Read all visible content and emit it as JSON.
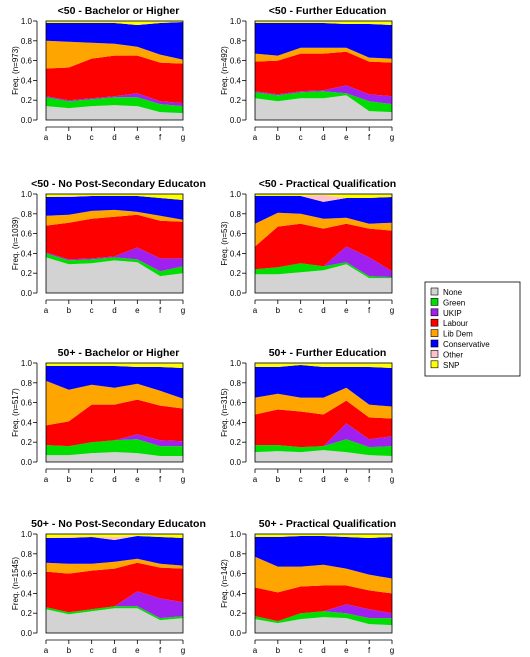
{
  "colors": {
    "None": "#d3d3d3",
    "Green": "#00dd00",
    "UKIP": "#a020f0",
    "Labour": "#ff0000",
    "Lib Dem": "#ffa500",
    "Conservative": "#0000ff",
    "Other": "#ffc0cb",
    "SNP": "#ffff00"
  },
  "legend": [
    "None",
    "Green",
    "UKIP",
    "Labour",
    "Lib Dem",
    "Conservative",
    "Other",
    "SNP"
  ],
  "chart_data": [
    {
      "type": "area",
      "stacked": true,
      "title": "<50 -  Bachelor or Higher",
      "ylabel": "Freq. (n=973)",
      "categories": [
        "a",
        "b",
        "c",
        "d",
        "e",
        "f",
        "g"
      ],
      "yticks": [
        "0.0",
        "0.2",
        "0.4",
        "0.6",
        "0.8",
        "1.0"
      ],
      "ylim": [
        0,
        1
      ],
      "series": [
        {
          "name": "None",
          "values": [
            0.14,
            0.12,
            0.14,
            0.15,
            0.14,
            0.08,
            0.07
          ]
        },
        {
          "name": "Green",
          "values": [
            0.09,
            0.07,
            0.07,
            0.08,
            0.09,
            0.08,
            0.07
          ]
        },
        {
          "name": "UKIP",
          "values": [
            0.01,
            0.01,
            0.01,
            0.01,
            0.04,
            0.03,
            0.03
          ]
        },
        {
          "name": "Labour",
          "values": [
            0.28,
            0.33,
            0.4,
            0.41,
            0.38,
            0.39,
            0.4
          ]
        },
        {
          "name": "Lib Dem",
          "values": [
            0.28,
            0.26,
            0.16,
            0.12,
            0.09,
            0.08,
            0.04
          ]
        },
        {
          "name": "Conservative",
          "values": [
            0.18,
            0.19,
            0.2,
            0.21,
            0.22,
            0.32,
            0.38
          ]
        },
        {
          "name": "Other",
          "values": [
            0.0,
            0.0,
            0.0,
            0.0,
            0.0,
            0.0,
            0.0
          ]
        },
        {
          "name": "SNP",
          "values": [
            0.02,
            0.02,
            0.02,
            0.02,
            0.04,
            0.02,
            0.01
          ]
        }
      ]
    },
    {
      "type": "area",
      "stacked": true,
      "title": "<50 -  Further Education",
      "ylabel": "Freq. (n=492)",
      "categories": [
        "a",
        "b",
        "c",
        "d",
        "e",
        "f",
        "g"
      ],
      "yticks": [
        "0.0",
        "0.2",
        "0.4",
        "0.6",
        "0.8",
        "1.0"
      ],
      "ylim": [
        0,
        1
      ],
      "series": [
        {
          "name": "None",
          "values": [
            0.22,
            0.19,
            0.22,
            0.22,
            0.25,
            0.09,
            0.08
          ]
        },
        {
          "name": "Green",
          "values": [
            0.06,
            0.06,
            0.06,
            0.07,
            0.02,
            0.1,
            0.08
          ]
        },
        {
          "name": "UKIP",
          "values": [
            0.01,
            0.01,
            0.01,
            0.01,
            0.08,
            0.07,
            0.08
          ]
        },
        {
          "name": "Labour",
          "values": [
            0.3,
            0.34,
            0.38,
            0.37,
            0.34,
            0.33,
            0.34
          ]
        },
        {
          "name": "Lib Dem",
          "values": [
            0.08,
            0.05,
            0.06,
            0.06,
            0.04,
            0.04,
            0.04
          ]
        },
        {
          "name": "Conservative",
          "values": [
            0.31,
            0.33,
            0.25,
            0.25,
            0.24,
            0.34,
            0.34
          ]
        },
        {
          "name": "Other",
          "values": [
            0.0,
            0.0,
            0.0,
            0.0,
            0.0,
            0.0,
            0.0
          ]
        },
        {
          "name": "SNP",
          "values": [
            0.02,
            0.02,
            0.02,
            0.02,
            0.03,
            0.03,
            0.04
          ]
        }
      ]
    },
    {
      "type": "area",
      "stacked": true,
      "title": "<50 -  No Post-Secondary Educaton",
      "ylabel": "Freq. (n=1039)",
      "categories": [
        "a",
        "b",
        "c",
        "d",
        "e",
        "f",
        "g"
      ],
      "yticks": [
        "0.0",
        "0.2",
        "0.4",
        "0.6",
        "0.8",
        "1.0"
      ],
      "ylim": [
        0,
        1
      ],
      "series": [
        {
          "name": "None",
          "values": [
            0.36,
            0.29,
            0.3,
            0.33,
            0.31,
            0.17,
            0.2
          ]
        },
        {
          "name": "Green",
          "values": [
            0.04,
            0.04,
            0.04,
            0.03,
            0.03,
            0.05,
            0.07
          ]
        },
        {
          "name": "UKIP",
          "values": [
            0.01,
            0.01,
            0.01,
            0.01,
            0.12,
            0.13,
            0.08
          ]
        },
        {
          "name": "Labour",
          "values": [
            0.27,
            0.37,
            0.4,
            0.4,
            0.33,
            0.38,
            0.37
          ]
        },
        {
          "name": "Lib Dem",
          "values": [
            0.1,
            0.08,
            0.08,
            0.07,
            0.03,
            0.05,
            0.02
          ]
        },
        {
          "name": "Conservative",
          "values": [
            0.19,
            0.18,
            0.15,
            0.14,
            0.16,
            0.18,
            0.2
          ]
        },
        {
          "name": "Other",
          "values": [
            0.0,
            0.01,
            0.0,
            0.0,
            0.0,
            0.0,
            0.0
          ]
        },
        {
          "name": "SNP",
          "values": [
            0.03,
            0.02,
            0.02,
            0.02,
            0.02,
            0.04,
            0.06
          ]
        }
      ]
    },
    {
      "type": "area",
      "stacked": true,
      "title": "<50 -  Practical Qualification",
      "ylabel": "Freq. (n=53)",
      "categories": [
        "a",
        "b",
        "c",
        "d",
        "e",
        "f",
        "g"
      ],
      "yticks": [
        "0.0",
        "0.2",
        "0.4",
        "0.6",
        "0.8",
        "1.0"
      ],
      "ylim": [
        0,
        1
      ],
      "series": [
        {
          "name": "None",
          "values": [
            0.19,
            0.19,
            0.21,
            0.23,
            0.29,
            0.15,
            0.15
          ]
        },
        {
          "name": "Green",
          "values": [
            0.05,
            0.07,
            0.09,
            0.04,
            0.02,
            0.02,
            0.01
          ]
        },
        {
          "name": "UKIP",
          "values": [
            0.0,
            0.0,
            0.0,
            0.0,
            0.16,
            0.19,
            0.06
          ]
        },
        {
          "name": "Labour",
          "values": [
            0.23,
            0.41,
            0.4,
            0.38,
            0.23,
            0.29,
            0.41
          ]
        },
        {
          "name": "Lib Dem",
          "values": [
            0.23,
            0.14,
            0.1,
            0.1,
            0.06,
            0.05,
            0.08
          ]
        },
        {
          "name": "Conservative",
          "values": [
            0.28,
            0.17,
            0.18,
            0.17,
            0.2,
            0.26,
            0.26
          ]
        },
        {
          "name": "Other",
          "values": [
            0.0,
            0.0,
            0.0,
            0.07,
            0.0,
            0.0,
            0.0
          ]
        },
        {
          "name": "SNP",
          "values": [
            0.02,
            0.02,
            0.02,
            0.01,
            0.04,
            0.04,
            0.03
          ]
        }
      ]
    },
    {
      "type": "area",
      "stacked": true,
      "title": "50+ -  Bachelor or Higher",
      "ylabel": "Freq. (n=517)",
      "categories": [
        "a",
        "b",
        "c",
        "d",
        "e",
        "f",
        "g"
      ],
      "yticks": [
        "0.0",
        "0.2",
        "0.4",
        "0.6",
        "0.8",
        "1.0"
      ],
      "ylim": [
        0,
        1
      ],
      "series": [
        {
          "name": "None",
          "values": [
            0.07,
            0.07,
            0.09,
            0.1,
            0.09,
            0.06,
            0.06
          ]
        },
        {
          "name": "Green",
          "values": [
            0.1,
            0.09,
            0.11,
            0.12,
            0.14,
            0.1,
            0.1
          ]
        },
        {
          "name": "UKIP",
          "values": [
            0.0,
            0.0,
            0.0,
            0.0,
            0.05,
            0.06,
            0.05
          ]
        },
        {
          "name": "Labour",
          "values": [
            0.2,
            0.25,
            0.38,
            0.36,
            0.35,
            0.35,
            0.33
          ]
        },
        {
          "name": "Lib Dem",
          "values": [
            0.45,
            0.32,
            0.2,
            0.17,
            0.16,
            0.15,
            0.1
          ]
        },
        {
          "name": "Conservative",
          "values": [
            0.15,
            0.24,
            0.19,
            0.22,
            0.17,
            0.24,
            0.31
          ]
        },
        {
          "name": "Other",
          "values": [
            0.0,
            0.0,
            0.0,
            0.0,
            0.0,
            0.0,
            0.0
          ]
        },
        {
          "name": "SNP",
          "values": [
            0.03,
            0.03,
            0.03,
            0.03,
            0.04,
            0.04,
            0.05
          ]
        }
      ]
    },
    {
      "type": "area",
      "stacked": true,
      "title": "50+ -  Further Education",
      "ylabel": "Freq. (n=315)",
      "categories": [
        "a",
        "b",
        "c",
        "d",
        "e",
        "f",
        "g"
      ],
      "yticks": [
        "0.0",
        "0.2",
        "0.4",
        "0.6",
        "0.8",
        "1.0"
      ],
      "ylim": [
        0,
        1
      ],
      "series": [
        {
          "name": "None",
          "values": [
            0.1,
            0.11,
            0.1,
            0.12,
            0.1,
            0.07,
            0.06
          ]
        },
        {
          "name": "Green",
          "values": [
            0.07,
            0.06,
            0.05,
            0.04,
            0.13,
            0.08,
            0.1
          ]
        },
        {
          "name": "UKIP",
          "values": [
            0.0,
            0.0,
            0.0,
            0.0,
            0.16,
            0.08,
            0.1
          ]
        },
        {
          "name": "Labour",
          "values": [
            0.31,
            0.36,
            0.36,
            0.32,
            0.23,
            0.22,
            0.18
          ]
        },
        {
          "name": "Lib Dem",
          "values": [
            0.17,
            0.16,
            0.14,
            0.17,
            0.13,
            0.13,
            0.12
          ]
        },
        {
          "name": "Conservative",
          "values": [
            0.31,
            0.27,
            0.33,
            0.31,
            0.21,
            0.38,
            0.39
          ]
        },
        {
          "name": "Other",
          "values": [
            0.0,
            0.0,
            0.0,
            0.0,
            0.0,
            0.0,
            0.0
          ]
        },
        {
          "name": "SNP",
          "values": [
            0.04,
            0.04,
            0.02,
            0.04,
            0.04,
            0.04,
            0.05
          ]
        }
      ]
    },
    {
      "type": "area",
      "stacked": true,
      "title": "50+ -  No Post-Secondary Educaton",
      "ylabel": "Freq. (n=1545)",
      "categories": [
        "a",
        "b",
        "c",
        "d",
        "e",
        "f",
        "g"
      ],
      "yticks": [
        "0.0",
        "0.2",
        "0.4",
        "0.6",
        "0.8",
        "1.0"
      ],
      "ylim": [
        0,
        1
      ],
      "series": [
        {
          "name": "None",
          "values": [
            0.24,
            0.19,
            0.22,
            0.25,
            0.25,
            0.13,
            0.15
          ]
        },
        {
          "name": "Green",
          "values": [
            0.02,
            0.02,
            0.02,
            0.02,
            0.02,
            0.02,
            0.02
          ]
        },
        {
          "name": "UKIP",
          "values": [
            0.0,
            0.0,
            0.0,
            0.0,
            0.15,
            0.2,
            0.14
          ]
        },
        {
          "name": "Labour",
          "values": [
            0.36,
            0.39,
            0.39,
            0.38,
            0.29,
            0.31,
            0.34
          ]
        },
        {
          "name": "Lib Dem",
          "values": [
            0.09,
            0.1,
            0.07,
            0.07,
            0.04,
            0.04,
            0.03
          ]
        },
        {
          "name": "Conservative",
          "values": [
            0.25,
            0.26,
            0.27,
            0.22,
            0.23,
            0.27,
            0.28
          ]
        },
        {
          "name": "Other",
          "values": [
            0.0,
            0.01,
            0.0,
            0.03,
            0.0,
            0.0,
            0.0
          ]
        },
        {
          "name": "SNP",
          "values": [
            0.04,
            0.03,
            0.03,
            0.03,
            0.02,
            0.03,
            0.04
          ]
        }
      ]
    },
    {
      "type": "area",
      "stacked": true,
      "title": "50+ -  Practical Qualification",
      "ylabel": "Freq. (n=142)",
      "categories": [
        "a",
        "b",
        "c",
        "d",
        "e",
        "f",
        "g"
      ],
      "yticks": [
        "0.0",
        "0.2",
        "0.4",
        "0.6",
        "0.8",
        "1.0"
      ],
      "ylim": [
        0,
        1
      ],
      "series": [
        {
          "name": "None",
          "values": [
            0.14,
            0.1,
            0.14,
            0.16,
            0.15,
            0.09,
            0.08
          ]
        },
        {
          "name": "Green",
          "values": [
            0.03,
            0.02,
            0.06,
            0.06,
            0.05,
            0.06,
            0.07
          ]
        },
        {
          "name": "UKIP",
          "values": [
            0.0,
            0.0,
            0.0,
            0.0,
            0.09,
            0.09,
            0.05
          ]
        },
        {
          "name": "Labour",
          "values": [
            0.29,
            0.29,
            0.27,
            0.26,
            0.19,
            0.19,
            0.2
          ]
        },
        {
          "name": "Lib Dem",
          "values": [
            0.31,
            0.26,
            0.2,
            0.21,
            0.17,
            0.16,
            0.15
          ]
        },
        {
          "name": "Conservative",
          "values": [
            0.2,
            0.3,
            0.31,
            0.29,
            0.32,
            0.37,
            0.42
          ]
        },
        {
          "name": "Other",
          "values": [
            0.0,
            0.0,
            0.0,
            0.0,
            0.0,
            0.0,
            0.0
          ]
        },
        {
          "name": "SNP",
          "values": [
            0.03,
            0.03,
            0.02,
            0.02,
            0.03,
            0.04,
            0.03
          ]
        }
      ]
    }
  ]
}
